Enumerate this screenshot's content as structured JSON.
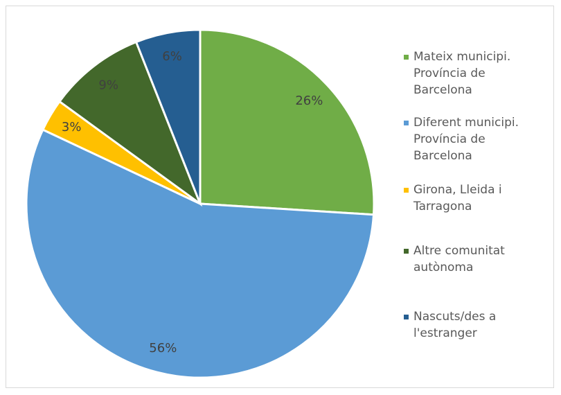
{
  "chart_data": {
    "type": "pie",
    "categories": [
      "Mateix municipi. Província de Barcelona",
      "Diferent municipi. Província de Barcelona",
      "Girona, Lleida i Tarragona",
      "Altre comunitat autònoma",
      "Nascuts/des a l'estranger"
    ],
    "values": [
      26,
      56,
      3,
      9,
      6
    ],
    "value_labels": [
      "26%",
      "56%",
      "3%",
      "9%",
      "6%"
    ],
    "colors": [
      "#70ad47",
      "#5b9bd5",
      "#ffc000",
      "#43682b",
      "#255e91"
    ],
    "legend": "right"
  }
}
